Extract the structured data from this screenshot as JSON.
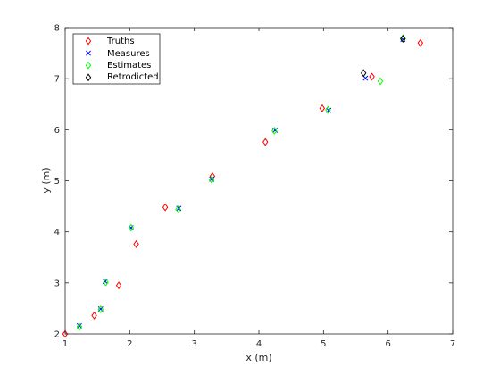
{
  "chart_data": {
    "type": "scatter",
    "title": "",
    "xlabel": "x (m)",
    "ylabel": "y (m)",
    "xlim": [
      1,
      7
    ],
    "ylim": [
      2,
      8
    ],
    "x_ticks": [
      "1",
      "2",
      "3",
      "4",
      "5",
      "6",
      "7"
    ],
    "y_ticks": [
      "2",
      "3",
      "4",
      "5",
      "6",
      "7",
      "8"
    ],
    "grid": false,
    "legend_position": "top-left",
    "series": [
      {
        "name": "Truths",
        "marker": "diamond-open",
        "color": "#ff0000",
        "x": [
          1.0,
          1.45,
          1.83,
          2.1,
          2.55,
          3.28,
          4.1,
          4.98,
          5.75,
          6.5
        ],
        "y": [
          2.0,
          2.36,
          2.95,
          3.76,
          4.48,
          5.09,
          5.76,
          6.42,
          7.04,
          7.7
        ]
      },
      {
        "name": "Measures",
        "marker": "x",
        "color": "#0000ff",
        "x": [
          1.22,
          1.55,
          1.62,
          2.02,
          2.76,
          3.27,
          4.25,
          5.08,
          5.65,
          6.23
        ],
        "y": [
          2.16,
          2.49,
          3.03,
          4.08,
          4.46,
          5.03,
          5.99,
          6.38,
          7.01,
          7.77
        ]
      },
      {
        "name": "Estimates",
        "marker": "diamond-open",
        "color": "#00ff00",
        "x": [
          1.22,
          1.55,
          1.63,
          2.02,
          2.75,
          3.27,
          4.24,
          5.07,
          5.88,
          6.23
        ],
        "y": [
          2.14,
          2.48,
          3.01,
          4.08,
          4.44,
          5.02,
          5.98,
          6.39,
          6.95,
          7.79
        ]
      },
      {
        "name": "Retrodicted",
        "marker": "diamond-open",
        "color": "#000000",
        "x": [
          5.62,
          6.23
        ],
        "y": [
          7.11,
          7.78
        ]
      }
    ]
  }
}
